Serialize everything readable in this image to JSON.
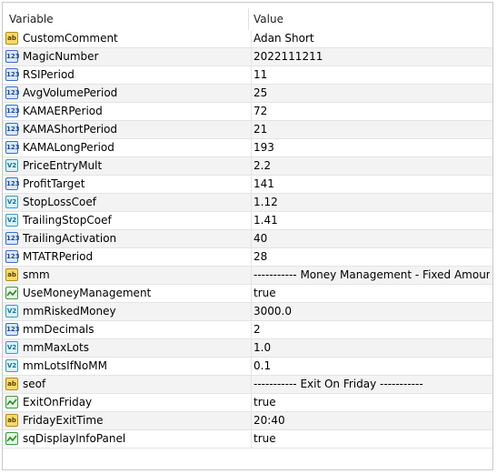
{
  "table": {
    "columns": [
      "Variable",
      "Value"
    ],
    "rows": [
      {
        "icon": "ab",
        "name": "CustomComment",
        "value": "Adan Short"
      },
      {
        "icon": "123",
        "name": "MagicNumber",
        "value": "2022111211"
      },
      {
        "icon": "123",
        "name": "RSIPeriod",
        "value": "11"
      },
      {
        "icon": "123",
        "name": "AvgVolumePeriod",
        "value": "25"
      },
      {
        "icon": "123",
        "name": "KAMAERPeriod",
        "value": "72"
      },
      {
        "icon": "123",
        "name": "KAMAShortPeriod",
        "value": "21"
      },
      {
        "icon": "123",
        "name": "KAMALongPeriod",
        "value": "193"
      },
      {
        "icon": "V2",
        "name": "PriceEntryMult",
        "value": "2.2"
      },
      {
        "icon": "123",
        "name": "ProfitTarget",
        "value": "141"
      },
      {
        "icon": "V2",
        "name": "StopLossCoef",
        "value": "1.12"
      },
      {
        "icon": "V2",
        "name": "TrailingStopCoef",
        "value": "1.41"
      },
      {
        "icon": "123",
        "name": "TrailingActivation",
        "value": "40"
      },
      {
        "icon": "123",
        "name": "MTATRPeriod",
        "value": "28"
      },
      {
        "icon": "ab",
        "name": "smm",
        "value": "----------- Money Management - Fixed Amount..."
      },
      {
        "icon": "bool",
        "name": "UseMoneyManagement",
        "value": "true"
      },
      {
        "icon": "V2",
        "name": "mmRiskedMoney",
        "value": "3000.0"
      },
      {
        "icon": "123",
        "name": "mmDecimals",
        "value": "2"
      },
      {
        "icon": "V2",
        "name": "mmMaxLots",
        "value": "1.0"
      },
      {
        "icon": "V2",
        "name": "mmLotsIfNoMM",
        "value": "0.1"
      },
      {
        "icon": "ab",
        "name": "seof",
        "value": "----------- Exit On Friday -----------"
      },
      {
        "icon": "bool",
        "name": "ExitOnFriday",
        "value": "true"
      },
      {
        "icon": "ab",
        "name": "FridayExitTime",
        "value": "20:40"
      },
      {
        "icon": "bool",
        "name": "sqDisplayInfoPanel",
        "value": "true"
      }
    ]
  }
}
